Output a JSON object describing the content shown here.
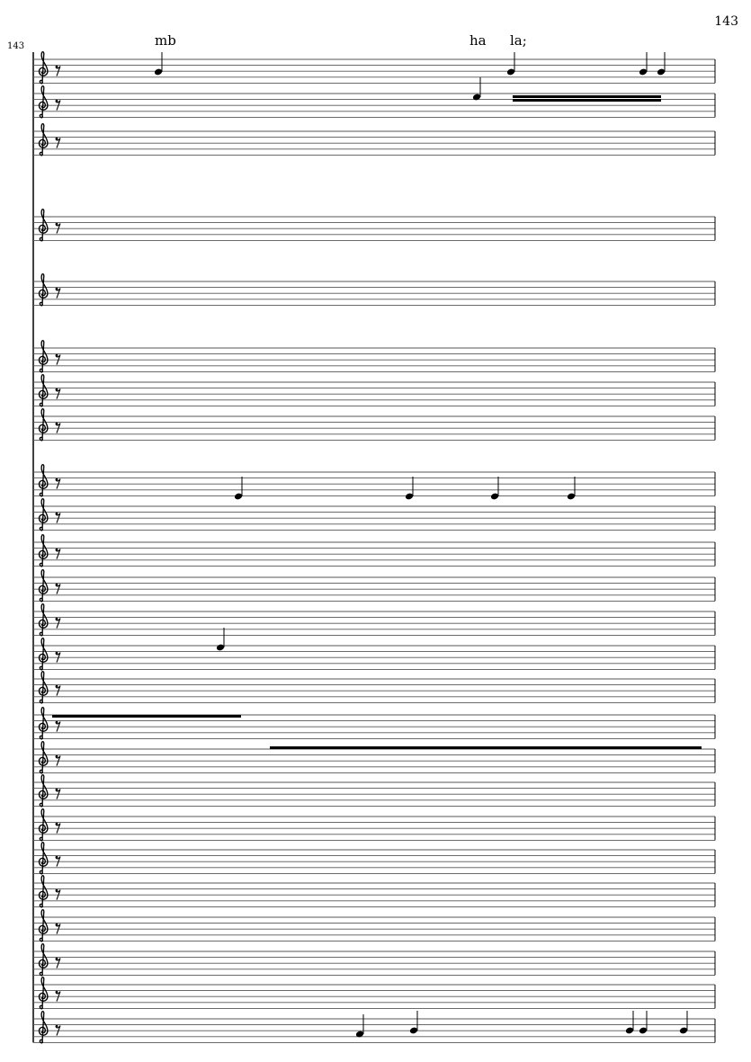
{
  "page": {
    "number": "143"
  },
  "score": {
    "measure_number": "143",
    "clef": "treble",
    "staff_count": 28,
    "lyrics": [
      "mb",
      "ha",
      "la;"
    ]
  }
}
